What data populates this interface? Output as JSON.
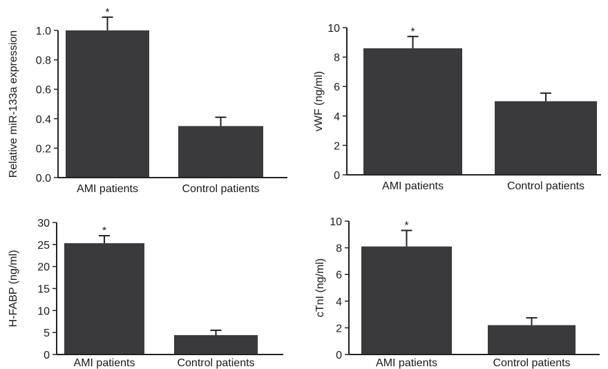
{
  "chart_data": [
    {
      "type": "bar",
      "categories": [
        "AMI patients",
        "Control patients"
      ],
      "values": [
        1.0,
        0.35
      ],
      "errors": [
        0.09,
        0.06
      ],
      "significance": [
        "*",
        ""
      ],
      "ylabel": "Relative miR-133a expression",
      "ylim": [
        0,
        1.0
      ],
      "yticks": [
        0.0,
        0.2,
        0.4,
        0.6,
        0.8,
        1.0
      ],
      "ytick_labels": [
        "0.0",
        "0.2",
        "0.4",
        "0.6",
        "0.8",
        "1.0"
      ],
      "bar_color": "#3a3a3c"
    },
    {
      "type": "bar",
      "categories": [
        "AMI patients",
        "Control patients"
      ],
      "values": [
        8.6,
        5.0
      ],
      "errors": [
        0.8,
        0.55
      ],
      "significance": [
        "*",
        ""
      ],
      "ylabel": "vWF (ng/ml)",
      "ylim": [
        0,
        10
      ],
      "yticks": [
        0,
        2,
        4,
        6,
        8,
        10
      ],
      "ytick_labels": [
        "0",
        "2",
        "4",
        "6",
        "8",
        "10"
      ],
      "bar_color": "#3a3a3c"
    },
    {
      "type": "bar",
      "categories": [
        "AMI patients",
        "Control patients"
      ],
      "values": [
        25.3,
        4.4
      ],
      "errors": [
        1.7,
        1.1
      ],
      "significance": [
        "*",
        ""
      ],
      "ylabel": "H-FABP (ng/ml)",
      "ylim": [
        0,
        30
      ],
      "yticks": [
        0,
        5,
        10,
        15,
        20,
        25,
        30
      ],
      "ytick_labels": [
        "0",
        "5",
        "10",
        "15",
        "20",
        "25",
        "30"
      ],
      "bar_color": "#3a3a3c"
    },
    {
      "type": "bar",
      "categories": [
        "AMI patients",
        "Control patients"
      ],
      "values": [
        8.1,
        2.2
      ],
      "errors": [
        1.2,
        0.55
      ],
      "significance": [
        "*",
        ""
      ],
      "ylabel": "cTnI (ng/ml)",
      "ylim": [
        0,
        10
      ],
      "yticks": [
        0,
        2,
        4,
        6,
        8,
        10
      ],
      "ytick_labels": [
        "0",
        "2",
        "4",
        "6",
        "8",
        "10"
      ],
      "bar_color": "#3a3a3c"
    }
  ]
}
